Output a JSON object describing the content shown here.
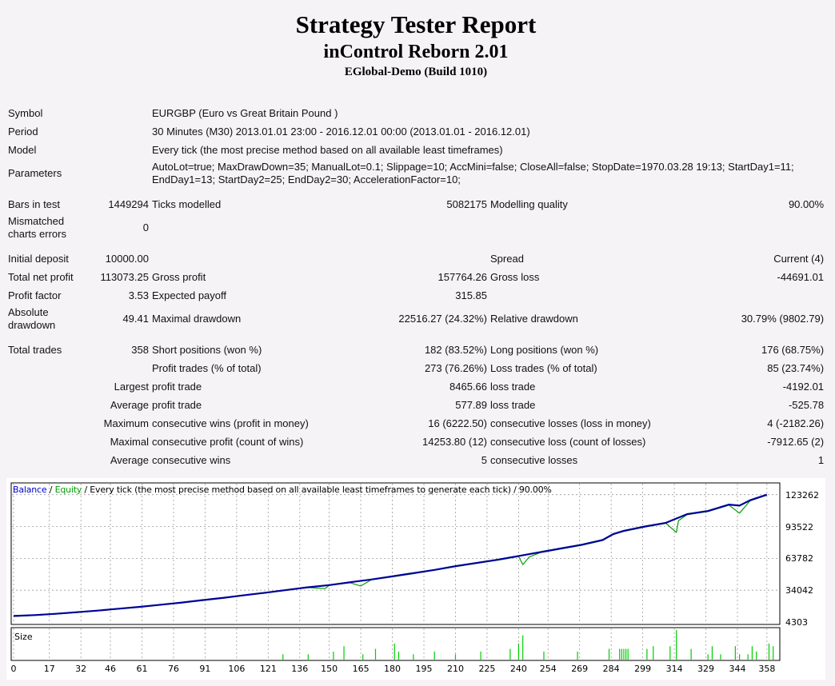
{
  "header": {
    "title": "Strategy Tester Report",
    "expert": "inControl Reborn 2.01",
    "server": "EGlobal-Demo (Build 1010)"
  },
  "info": {
    "symbol_label": "Symbol",
    "symbol_value": "EURGBP (Euro vs Great Britain Pound )",
    "period_label": "Period",
    "period_value": "30 Minutes (M30) 2013.01.01 23:00 - 2016.12.01 00:00 (2013.01.01 - 2016.12.01)",
    "model_label": "Model",
    "model_value": "Every tick (the most precise method based on all available least timeframes)",
    "parameters_label": "Parameters",
    "parameters_value": "AutoLot=true; MaxDrawDown=35; ManualLot=0.1; Slippage=10; AccMini=false; CloseAll=false; StopDate=1970.03.28 19:13; StartDay1=11; EndDay1=13; StartDay2=25; EndDay2=30; AccelerationFactor=10;"
  },
  "modelling": {
    "bars_label": "Bars in test",
    "bars_value": "1449294",
    "ticks_label": "Ticks modelled",
    "ticks_value": "5082175",
    "quality_label": "Modelling quality",
    "quality_value": "90.00%",
    "mismatch_label": "Mismatched charts errors",
    "mismatch_value": "0"
  },
  "results": {
    "initial_deposit_label": "Initial deposit",
    "initial_deposit_value": "10000.00",
    "spread_label": "Spread",
    "spread_value": "Current (4)",
    "net_profit_label": "Total net profit",
    "net_profit_value": "113073.25",
    "gross_profit_label": "Gross profit",
    "gross_profit_value": "157764.26",
    "gross_loss_label": "Gross loss",
    "gross_loss_value": "-44691.01",
    "profit_factor_label": "Profit factor",
    "profit_factor_value": "3.53",
    "expected_payoff_label": "Expected payoff",
    "expected_payoff_value": "315.85",
    "abs_drawdown_label": "Absolute drawdown",
    "abs_drawdown_value": "49.41",
    "max_drawdown_label": "Maximal drawdown",
    "max_drawdown_value": "22516.27 (24.32%)",
    "rel_drawdown_label": "Relative drawdown",
    "rel_drawdown_value": "30.79% (9802.79)",
    "total_trades_label": "Total trades",
    "total_trades_value": "358",
    "short_label": "Short positions (won %)",
    "short_value": "182 (83.52%)",
    "long_label": "Long positions (won %)",
    "long_value": "176 (68.75%)",
    "profit_trades_label": "Profit trades (% of total)",
    "profit_trades_value": "273 (76.26%)",
    "loss_trades_label": "Loss trades (% of total)",
    "loss_trades_value": "85 (23.74%)",
    "largest_label": "Largest",
    "largest_profit_label": "profit trade",
    "largest_profit_value": "8465.66",
    "largest_loss_label": "loss trade",
    "largest_loss_value": "-4192.01",
    "average_label": "Average",
    "average_profit_label": "profit trade",
    "average_profit_value": "577.89",
    "average_loss_label": "loss trade",
    "average_loss_value": "-525.78",
    "maximum_label": "Maximum",
    "max_cons_wins_label": "consecutive wins (profit in money)",
    "max_cons_wins_value": "16 (6222.50)",
    "max_cons_losses_label": "consecutive losses (loss in money)",
    "max_cons_losses_value": "4 (-2182.26)",
    "maximal_label": "Maximal",
    "maximal_cons_profit_label": "consecutive profit (count of wins)",
    "maximal_cons_profit_value": "14253.80 (12)",
    "maximal_cons_loss_label": "consecutive loss (count of losses)",
    "maximal_cons_loss_value": "-7912.65 (2)",
    "average2_label": "Average",
    "avg_cons_wins_label": "consecutive wins",
    "avg_cons_wins_value": "5",
    "avg_cons_losses_label": "consecutive losses",
    "avg_cons_losses_value": "1"
  },
  "chart": {
    "legend_balance": "Balance",
    "legend_sep1": " / ",
    "legend_equity": "Equity",
    "legend_rest": " / Every tick (the most precise method based on all available least timeframes to generate each tick) / 90.00%",
    "size_label": "Size",
    "balance_color": "#000099",
    "equity_color": "#00a000",
    "size_color": "#00cc00"
  },
  "chart_data": {
    "type": "line",
    "title": "",
    "xlabel": "",
    "ylabel": "",
    "x_ticks": [
      "0",
      "17",
      "32",
      "46",
      "61",
      "76",
      "91",
      "106",
      "121",
      "136",
      "150",
      "165",
      "180",
      "195",
      "210",
      "225",
      "240",
      "254",
      "269",
      "284",
      "299",
      "314",
      "329",
      "344",
      "358"
    ],
    "y_ticks": [
      "123262",
      "93522",
      "63782",
      "34042",
      "4303"
    ],
    "xlim": [
      0,
      363
    ],
    "ylim": [
      4303,
      129000
    ],
    "grid": true,
    "series": [
      {
        "name": "Balance",
        "x": [
          0,
          10,
          20,
          30,
          40,
          50,
          60,
          70,
          80,
          90,
          100,
          110,
          120,
          130,
          140,
          150,
          160,
          170,
          180,
          190,
          200,
          210,
          220,
          230,
          240,
          250,
          260,
          270,
          280,
          285,
          290,
          300,
          310,
          315,
          320,
          330,
          340,
          345,
          350,
          358
        ],
        "values": [
          10000,
          10800,
          12000,
          13500,
          15000,
          16800,
          18500,
          20500,
          22500,
          24800,
          27000,
          29500,
          31800,
          34300,
          36800,
          38800,
          41500,
          44000,
          47000,
          50000,
          53000,
          56500,
          59500,
          62500,
          66000,
          69500,
          73000,
          76500,
          81000,
          86500,
          89500,
          93500,
          97000,
          101000,
          105000,
          108000,
          114000,
          113000,
          118000,
          123262
        ]
      },
      {
        "name": "Equity",
        "x": [
          0,
          10,
          20,
          30,
          40,
          50,
          60,
          70,
          80,
          90,
          100,
          110,
          120,
          130,
          140,
          148,
          150,
          160,
          165,
          170,
          180,
          190,
          200,
          210,
          220,
          230,
          240,
          242,
          245,
          250,
          260,
          270,
          280,
          285,
          290,
          300,
          310,
          315,
          316,
          320,
          330,
          340,
          345,
          350,
          358
        ],
        "values": [
          9500,
          10500,
          11800,
          13200,
          14800,
          16500,
          18300,
          20200,
          22300,
          24500,
          26700,
          29200,
          31500,
          34000,
          36500,
          35500,
          38500,
          41000,
          38000,
          43800,
          46500,
          49500,
          52800,
          56000,
          59000,
          62000,
          65500,
          58000,
          65000,
          69000,
          72500,
          76000,
          80500,
          86000,
          89000,
          93000,
          96500,
          88000,
          99000,
          104500,
          107500,
          113500,
          106000,
          117500,
          122800
        ]
      }
    ],
    "size_bars": [
      {
        "x": 128,
        "v": 2
      },
      {
        "x": 140,
        "v": 2
      },
      {
        "x": 152,
        "v": 3
      },
      {
        "x": 157,
        "v": 5
      },
      {
        "x": 166,
        "v": 2
      },
      {
        "x": 172,
        "v": 4
      },
      {
        "x": 181,
        "v": 6
      },
      {
        "x": 183,
        "v": 3
      },
      {
        "x": 190,
        "v": 2
      },
      {
        "x": 200,
        "v": 3
      },
      {
        "x": 210,
        "v": 2
      },
      {
        "x": 222,
        "v": 3
      },
      {
        "x": 236,
        "v": 4
      },
      {
        "x": 240,
        "v": 6
      },
      {
        "x": 242,
        "v": 9
      },
      {
        "x": 252,
        "v": 3
      },
      {
        "x": 268,
        "v": 3
      },
      {
        "x": 283,
        "v": 4
      },
      {
        "x": 288,
        "v": 4
      },
      {
        "x": 289,
        "v": 4
      },
      {
        "x": 290,
        "v": 4
      },
      {
        "x": 291,
        "v": 4
      },
      {
        "x": 292,
        "v": 4
      },
      {
        "x": 301,
        "v": 4
      },
      {
        "x": 304,
        "v": 5
      },
      {
        "x": 312,
        "v": 5
      },
      {
        "x": 315,
        "v": 11
      },
      {
        "x": 322,
        "v": 4
      },
      {
        "x": 330,
        "v": 2
      },
      {
        "x": 332,
        "v": 5
      },
      {
        "x": 336,
        "v": 2
      },
      {
        "x": 343,
        "v": 5
      },
      {
        "x": 345,
        "v": 2
      },
      {
        "x": 349,
        "v": 2
      },
      {
        "x": 351,
        "v": 5
      },
      {
        "x": 353,
        "v": 3
      },
      {
        "x": 359,
        "v": 6
      },
      {
        "x": 361,
        "v": 5
      }
    ]
  }
}
